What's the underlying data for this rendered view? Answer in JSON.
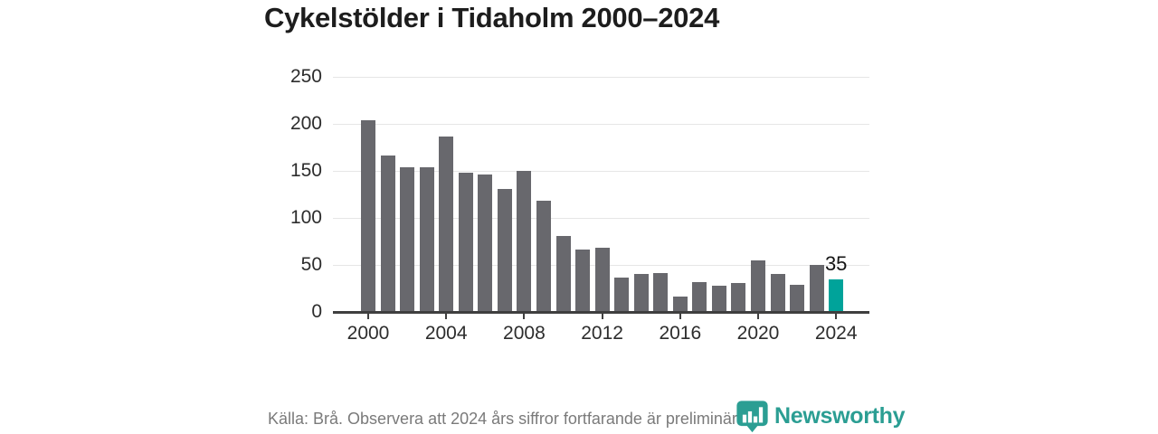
{
  "title": "Cykelstölder i Tidaholm 2000–2024",
  "chart_data": {
    "type": "bar",
    "title": "Cykelstölder i Tidaholm 2000–2024",
    "categories": [
      2000,
      2001,
      2002,
      2003,
      2004,
      2005,
      2006,
      2007,
      2008,
      2009,
      2010,
      2011,
      2012,
      2013,
      2014,
      2015,
      2016,
      2017,
      2018,
      2019,
      2020,
      2021,
      2022,
      2023,
      2024
    ],
    "values": [
      204,
      166,
      154,
      154,
      187,
      148,
      146,
      131,
      150,
      118,
      81,
      66,
      68,
      37,
      40,
      41,
      16,
      32,
      28,
      31,
      55,
      40,
      29,
      50,
      35
    ],
    "xlabel": "",
    "ylabel": "",
    "ylim": [
      0,
      250
    ],
    "yticks": [
      0,
      50,
      100,
      150,
      200,
      250
    ],
    "xtick_years": [
      2000,
      2004,
      2008,
      2012,
      2016,
      2020,
      2024
    ],
    "grid": true,
    "legend_position": "none",
    "bar_color": "#68686d",
    "highlight_color": "#00a39a",
    "highlight_index": 24,
    "data_label": {
      "index": 24,
      "text": "35"
    }
  },
  "footer": {
    "source_text": "Källa: Brå. Observera att 2024 års siffror fortfarande är preliminära."
  },
  "brand": {
    "name": "Newsworthy",
    "color": "#2b9e93",
    "icon": "newsworthy-pin-barchart-icon"
  }
}
